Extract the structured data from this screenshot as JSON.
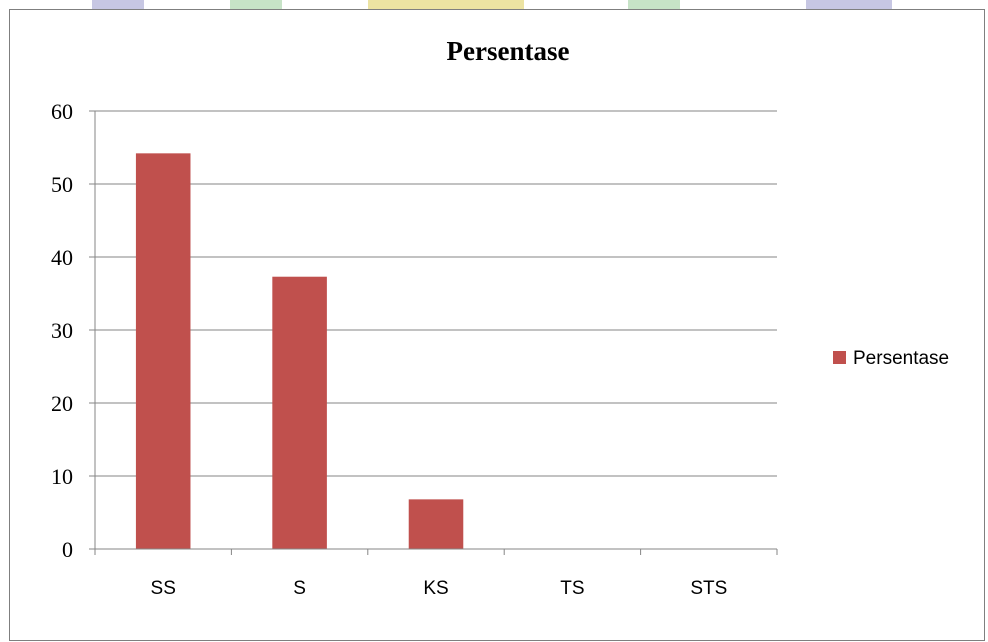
{
  "chart_data": {
    "type": "bar",
    "title": "Persentase",
    "xlabel": "",
    "ylabel": "",
    "categories": [
      "SS",
      "S",
      "KS",
      "TS",
      "STS"
    ],
    "series": [
      {
        "name": "Persentase",
        "values": [
          54.2,
          37.3,
          6.8,
          0,
          0
        ],
        "color": "#c0504d"
      }
    ],
    "ylim": [
      0,
      60
    ],
    "yticks": [
      "0",
      "10",
      "20",
      "30",
      "40",
      "50",
      "60"
    ],
    "grid": true,
    "legend": "right"
  },
  "decor": {
    "top_bands": [
      "#9999cc",
      "#99cc99",
      "#ddcc55",
      "#99cc99",
      "#9999cc"
    ]
  }
}
